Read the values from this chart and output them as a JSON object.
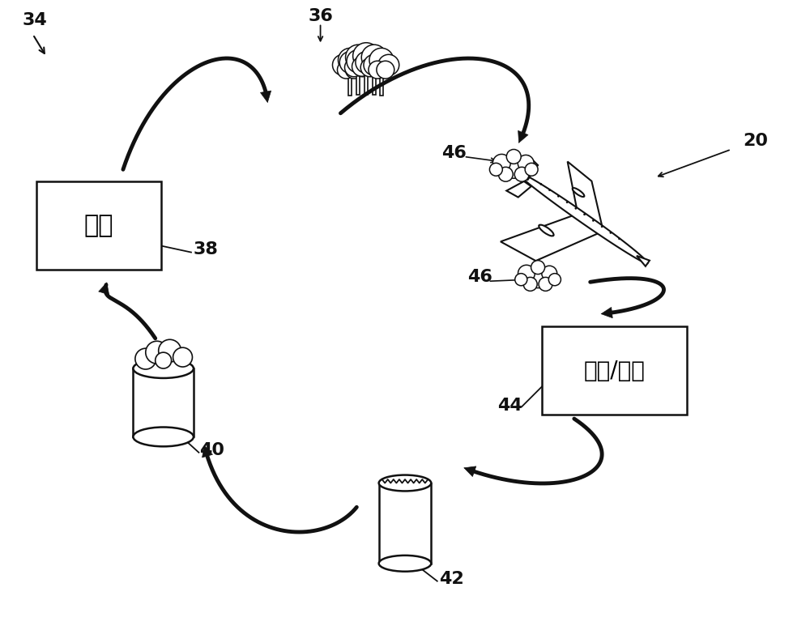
{
  "bg_color": "#ffffff",
  "label_34": "34",
  "label_36": "36",
  "label_38": "38",
  "label_40": "40",
  "label_42": "42",
  "label_44": "44",
  "label_46_1": "46",
  "label_46_2": "46",
  "label_20": "20",
  "text_transport": "运输",
  "text_distribution": "分配/存储",
  "font_size_labels": 15,
  "font_size_box": 22,
  "arrow_color": "#111111"
}
